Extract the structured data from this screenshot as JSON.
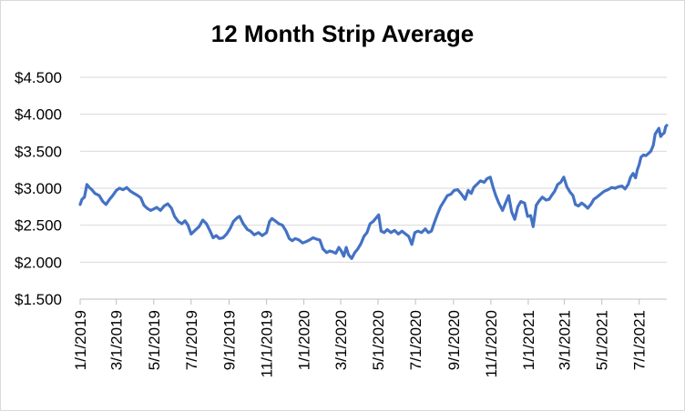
{
  "chart_data": {
    "type": "line",
    "title": "12 Month Strip Average",
    "xlabel": "",
    "ylabel": "",
    "ylim": [
      1.5,
      4.5
    ],
    "y_ticks": [
      "$1.500",
      "$2.000",
      "$2.500",
      "$3.000",
      "$3.500",
      "$4.000",
      "$4.500"
    ],
    "y_tick_values": [
      1.5,
      2.0,
      2.5,
      3.0,
      3.5,
      4.0,
      4.5
    ],
    "x_range": [
      "2019-01-01",
      "2021-08-15"
    ],
    "x_ticks": [
      "1/1/2019",
      "3/1/2019",
      "5/1/2019",
      "7/1/2019",
      "9/1/2019",
      "11/1/2019",
      "1/1/2020",
      "3/1/2020",
      "5/1/2020",
      "7/1/2020",
      "9/1/2020",
      "11/1/2020",
      "1/1/2021",
      "3/1/2021",
      "5/1/2021",
      "7/1/2021"
    ],
    "x_tick_dates": [
      "2019-01-01",
      "2019-03-01",
      "2019-05-01",
      "2019-07-01",
      "2019-09-01",
      "2019-11-01",
      "2020-01-01",
      "2020-03-01",
      "2020-05-01",
      "2020-07-01",
      "2020-09-01",
      "2020-11-01",
      "2021-01-01",
      "2021-03-01",
      "2021-05-01",
      "2021-07-01"
    ],
    "grid": true,
    "line_color": "#4472c4",
    "series": [
      {
        "name": "",
        "points": [
          [
            "2019-01-01",
            2.78
          ],
          [
            "2019-01-04",
            2.85
          ],
          [
            "2019-01-08",
            2.88
          ],
          [
            "2019-01-12",
            3.05
          ],
          [
            "2019-01-16",
            3.01
          ],
          [
            "2019-01-20",
            2.98
          ],
          [
            "2019-01-25",
            2.93
          ],
          [
            "2019-02-01",
            2.9
          ],
          [
            "2019-02-07",
            2.82
          ],
          [
            "2019-02-12",
            2.78
          ],
          [
            "2019-02-18",
            2.85
          ],
          [
            "2019-02-23",
            2.9
          ],
          [
            "2019-03-01",
            2.97
          ],
          [
            "2019-03-06",
            3.0
          ],
          [
            "2019-03-12",
            2.98
          ],
          [
            "2019-03-18",
            3.01
          ],
          [
            "2019-03-24",
            2.96
          ],
          [
            "2019-03-30",
            2.93
          ],
          [
            "2019-04-05",
            2.9
          ],
          [
            "2019-04-10",
            2.87
          ],
          [
            "2019-04-15",
            2.77
          ],
          [
            "2019-04-20",
            2.73
          ],
          [
            "2019-04-26",
            2.7
          ],
          [
            "2019-05-01",
            2.72
          ],
          [
            "2019-05-06",
            2.74
          ],
          [
            "2019-05-12",
            2.7
          ],
          [
            "2019-05-18",
            2.76
          ],
          [
            "2019-05-24",
            2.79
          ],
          [
            "2019-05-30",
            2.73
          ],
          [
            "2019-06-04",
            2.62
          ],
          [
            "2019-06-10",
            2.55
          ],
          [
            "2019-06-16",
            2.52
          ],
          [
            "2019-06-21",
            2.56
          ],
          [
            "2019-06-26",
            2.5
          ],
          [
            "2019-07-01",
            2.38
          ],
          [
            "2019-07-06",
            2.42
          ],
          [
            "2019-07-10",
            2.45
          ],
          [
            "2019-07-14",
            2.48
          ],
          [
            "2019-07-20",
            2.57
          ],
          [
            "2019-07-26",
            2.52
          ],
          [
            "2019-08-01",
            2.42
          ],
          [
            "2019-08-06",
            2.33
          ],
          [
            "2019-08-11",
            2.36
          ],
          [
            "2019-08-16",
            2.32
          ],
          [
            "2019-08-22",
            2.33
          ],
          [
            "2019-08-28",
            2.38
          ],
          [
            "2019-09-03",
            2.46
          ],
          [
            "2019-09-08",
            2.55
          ],
          [
            "2019-09-14",
            2.6
          ],
          [
            "2019-09-18",
            2.62
          ],
          [
            "2019-09-24",
            2.52
          ],
          [
            "2019-10-01",
            2.44
          ],
          [
            "2019-10-06",
            2.42
          ],
          [
            "2019-10-12",
            2.37
          ],
          [
            "2019-10-19",
            2.4
          ],
          [
            "2019-10-25",
            2.36
          ],
          [
            "2019-11-01",
            2.4
          ],
          [
            "2019-11-06",
            2.55
          ],
          [
            "2019-11-10",
            2.59
          ],
          [
            "2019-11-15",
            2.56
          ],
          [
            "2019-11-21",
            2.52
          ],
          [
            "2019-11-27",
            2.5
          ],
          [
            "2019-12-03",
            2.42
          ],
          [
            "2019-12-08",
            2.32
          ],
          [
            "2019-12-13",
            2.29
          ],
          [
            "2019-12-18",
            2.32
          ],
          [
            "2019-12-24",
            2.3
          ],
          [
            "2019-12-30",
            2.26
          ],
          [
            "2020-01-05",
            2.28
          ],
          [
            "2020-01-10",
            2.3
          ],
          [
            "2020-01-16",
            2.33
          ],
          [
            "2020-01-22",
            2.31
          ],
          [
            "2020-01-27",
            2.3
          ],
          [
            "2020-02-01",
            2.18
          ],
          [
            "2020-02-07",
            2.13
          ],
          [
            "2020-02-12",
            2.15
          ],
          [
            "2020-02-17",
            2.14
          ],
          [
            "2020-02-22",
            2.12
          ],
          [
            "2020-02-27",
            2.2
          ],
          [
            "2020-03-02",
            2.15
          ],
          [
            "2020-03-06",
            2.08
          ],
          [
            "2020-03-10",
            2.2
          ],
          [
            "2020-03-14",
            2.1
          ],
          [
            "2020-03-19",
            2.05
          ],
          [
            "2020-03-24",
            2.13
          ],
          [
            "2020-03-29",
            2.18
          ],
          [
            "2020-04-03",
            2.25
          ],
          [
            "2020-04-08",
            2.35
          ],
          [
            "2020-04-13",
            2.4
          ],
          [
            "2020-04-18",
            2.52
          ],
          [
            "2020-04-23",
            2.55
          ],
          [
            "2020-04-28",
            2.6
          ],
          [
            "2020-05-02",
            2.64
          ],
          [
            "2020-05-06",
            2.42
          ],
          [
            "2020-05-11",
            2.4
          ],
          [
            "2020-05-16",
            2.44
          ],
          [
            "2020-05-22",
            2.4
          ],
          [
            "2020-05-28",
            2.43
          ],
          [
            "2020-06-03",
            2.38
          ],
          [
            "2020-06-09",
            2.42
          ],
          [
            "2020-06-15",
            2.38
          ],
          [
            "2020-06-20",
            2.35
          ],
          [
            "2020-06-25",
            2.24
          ],
          [
            "2020-06-30",
            2.4
          ],
          [
            "2020-07-05",
            2.42
          ],
          [
            "2020-07-11",
            2.4
          ],
          [
            "2020-07-17",
            2.45
          ],
          [
            "2020-07-22",
            2.4
          ],
          [
            "2020-07-27",
            2.42
          ],
          [
            "2020-08-01",
            2.54
          ],
          [
            "2020-08-06",
            2.65
          ],
          [
            "2020-08-11",
            2.75
          ],
          [
            "2020-08-17",
            2.83
          ],
          [
            "2020-08-22",
            2.9
          ],
          [
            "2020-08-28",
            2.92
          ],
          [
            "2020-09-02",
            2.97
          ],
          [
            "2020-09-08",
            2.98
          ],
          [
            "2020-09-14",
            2.92
          ],
          [
            "2020-09-20",
            2.85
          ],
          [
            "2020-09-25",
            2.97
          ],
          [
            "2020-09-30",
            2.93
          ],
          [
            "2020-10-04",
            3.01
          ],
          [
            "2020-10-09",
            3.05
          ],
          [
            "2020-10-15",
            3.1
          ],
          [
            "2020-10-21",
            3.08
          ],
          [
            "2020-10-26",
            3.13
          ],
          [
            "2020-10-31",
            3.15
          ],
          [
            "2020-11-05",
            3.0
          ],
          [
            "2020-11-09",
            2.9
          ],
          [
            "2020-11-14",
            2.8
          ],
          [
            "2020-11-20",
            2.7
          ],
          [
            "2020-11-25",
            2.8
          ],
          [
            "2020-11-30",
            2.9
          ],
          [
            "2020-12-05",
            2.68
          ],
          [
            "2020-12-10",
            2.58
          ],
          [
            "2020-12-15",
            2.75
          ],
          [
            "2020-12-20",
            2.82
          ],
          [
            "2020-12-26",
            2.8
          ],
          [
            "2020-12-31",
            2.62
          ],
          [
            "2021-01-05",
            2.63
          ],
          [
            "2021-01-09",
            2.48
          ],
          [
            "2021-01-14",
            2.77
          ],
          [
            "2021-01-19",
            2.83
          ],
          [
            "2021-01-24",
            2.88
          ],
          [
            "2021-01-30",
            2.84
          ],
          [
            "2021-02-04",
            2.85
          ],
          [
            "2021-02-08",
            2.9
          ],
          [
            "2021-02-13",
            2.96
          ],
          [
            "2021-02-18",
            3.05
          ],
          [
            "2021-02-23",
            3.08
          ],
          [
            "2021-02-28",
            3.15
          ],
          [
            "2021-03-05",
            3.02
          ],
          [
            "2021-03-10",
            2.95
          ],
          [
            "2021-03-15",
            2.9
          ],
          [
            "2021-03-19",
            2.78
          ],
          [
            "2021-03-24",
            2.76
          ],
          [
            "2021-03-29",
            2.8
          ],
          [
            "2021-04-03",
            2.77
          ],
          [
            "2021-04-08",
            2.73
          ],
          [
            "2021-04-13",
            2.78
          ],
          [
            "2021-04-18",
            2.85
          ],
          [
            "2021-04-23",
            2.88
          ],
          [
            "2021-04-29",
            2.92
          ],
          [
            "2021-05-05",
            2.96
          ],
          [
            "2021-05-11",
            2.98
          ],
          [
            "2021-05-17",
            3.01
          ],
          [
            "2021-05-23",
            3.0
          ],
          [
            "2021-05-28",
            3.02
          ],
          [
            "2021-06-03",
            3.03
          ],
          [
            "2021-06-08",
            2.99
          ],
          [
            "2021-06-13",
            3.05
          ],
          [
            "2021-06-17",
            3.15
          ],
          [
            "2021-06-21",
            3.2
          ],
          [
            "2021-06-25",
            3.14
          ],
          [
            "2021-06-28",
            3.25
          ],
          [
            "2021-07-01",
            3.32
          ],
          [
            "2021-07-04",
            3.42
          ],
          [
            "2021-07-08",
            3.45
          ],
          [
            "2021-07-12",
            3.44
          ],
          [
            "2021-07-16",
            3.47
          ],
          [
            "2021-07-20",
            3.5
          ],
          [
            "2021-07-24",
            3.58
          ],
          [
            "2021-07-27",
            3.73
          ],
          [
            "2021-07-30",
            3.77
          ],
          [
            "2021-08-02",
            3.81
          ],
          [
            "2021-08-05",
            3.7
          ],
          [
            "2021-08-08",
            3.73
          ],
          [
            "2021-08-11",
            3.75
          ],
          [
            "2021-08-13",
            3.83
          ],
          [
            "2021-08-15",
            3.85
          ]
        ]
      }
    ]
  }
}
